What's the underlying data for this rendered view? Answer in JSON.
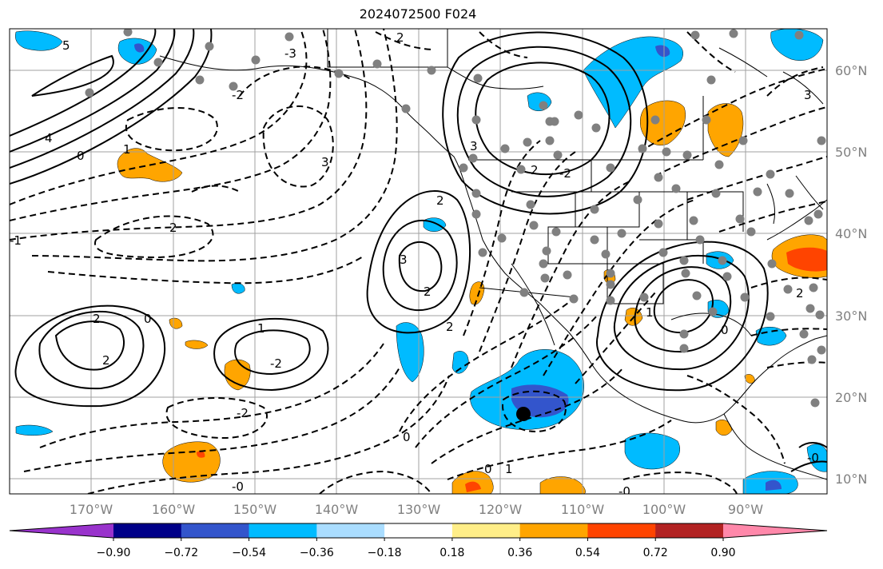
{
  "title": "2024072500 F024",
  "map": {
    "lat_labels": [
      "60°N",
      "50°N",
      "40°N",
      "30°N",
      "20°N",
      "10°N"
    ],
    "lon_labels": [
      "170°W",
      "160°W",
      "150°W",
      "140°W",
      "130°W",
      "120°W",
      "110°W",
      "100°W",
      "90°W"
    ],
    "colors": {
      "grid": "#a0a0a0",
      "coast": "#000000",
      "contour": "#000000",
      "station": "#808080",
      "marker": "#000000"
    }
  },
  "colorbar": {
    "labels": [
      "−0.90",
      "−0.72",
      "−0.54",
      "−0.36",
      "−0.18",
      "0.18",
      "0.36",
      "0.54",
      "0.72",
      "0.90"
    ],
    "colors": [
      "#9933cc",
      "#000088",
      "#3355cc",
      "#00bbff",
      "#aaddff",
      "#ffffff",
      "#ffee88",
      "#ffa500",
      "#ff4400",
      "#b22222",
      "#ff88aa"
    ]
  },
  "contour_labels": [
    "5",
    "4",
    "3",
    "2",
    "1",
    "0",
    "-0",
    "-1",
    "-2",
    "-3",
    "2",
    "3",
    "2",
    "2",
    "1",
    "-2",
    "0",
    "2",
    "2",
    "-2",
    "0",
    "2",
    "1",
    "0",
    "-0",
    "3",
    "2",
    "-2",
    "0",
    "1",
    "-0",
    "2",
    "3"
  ]
}
